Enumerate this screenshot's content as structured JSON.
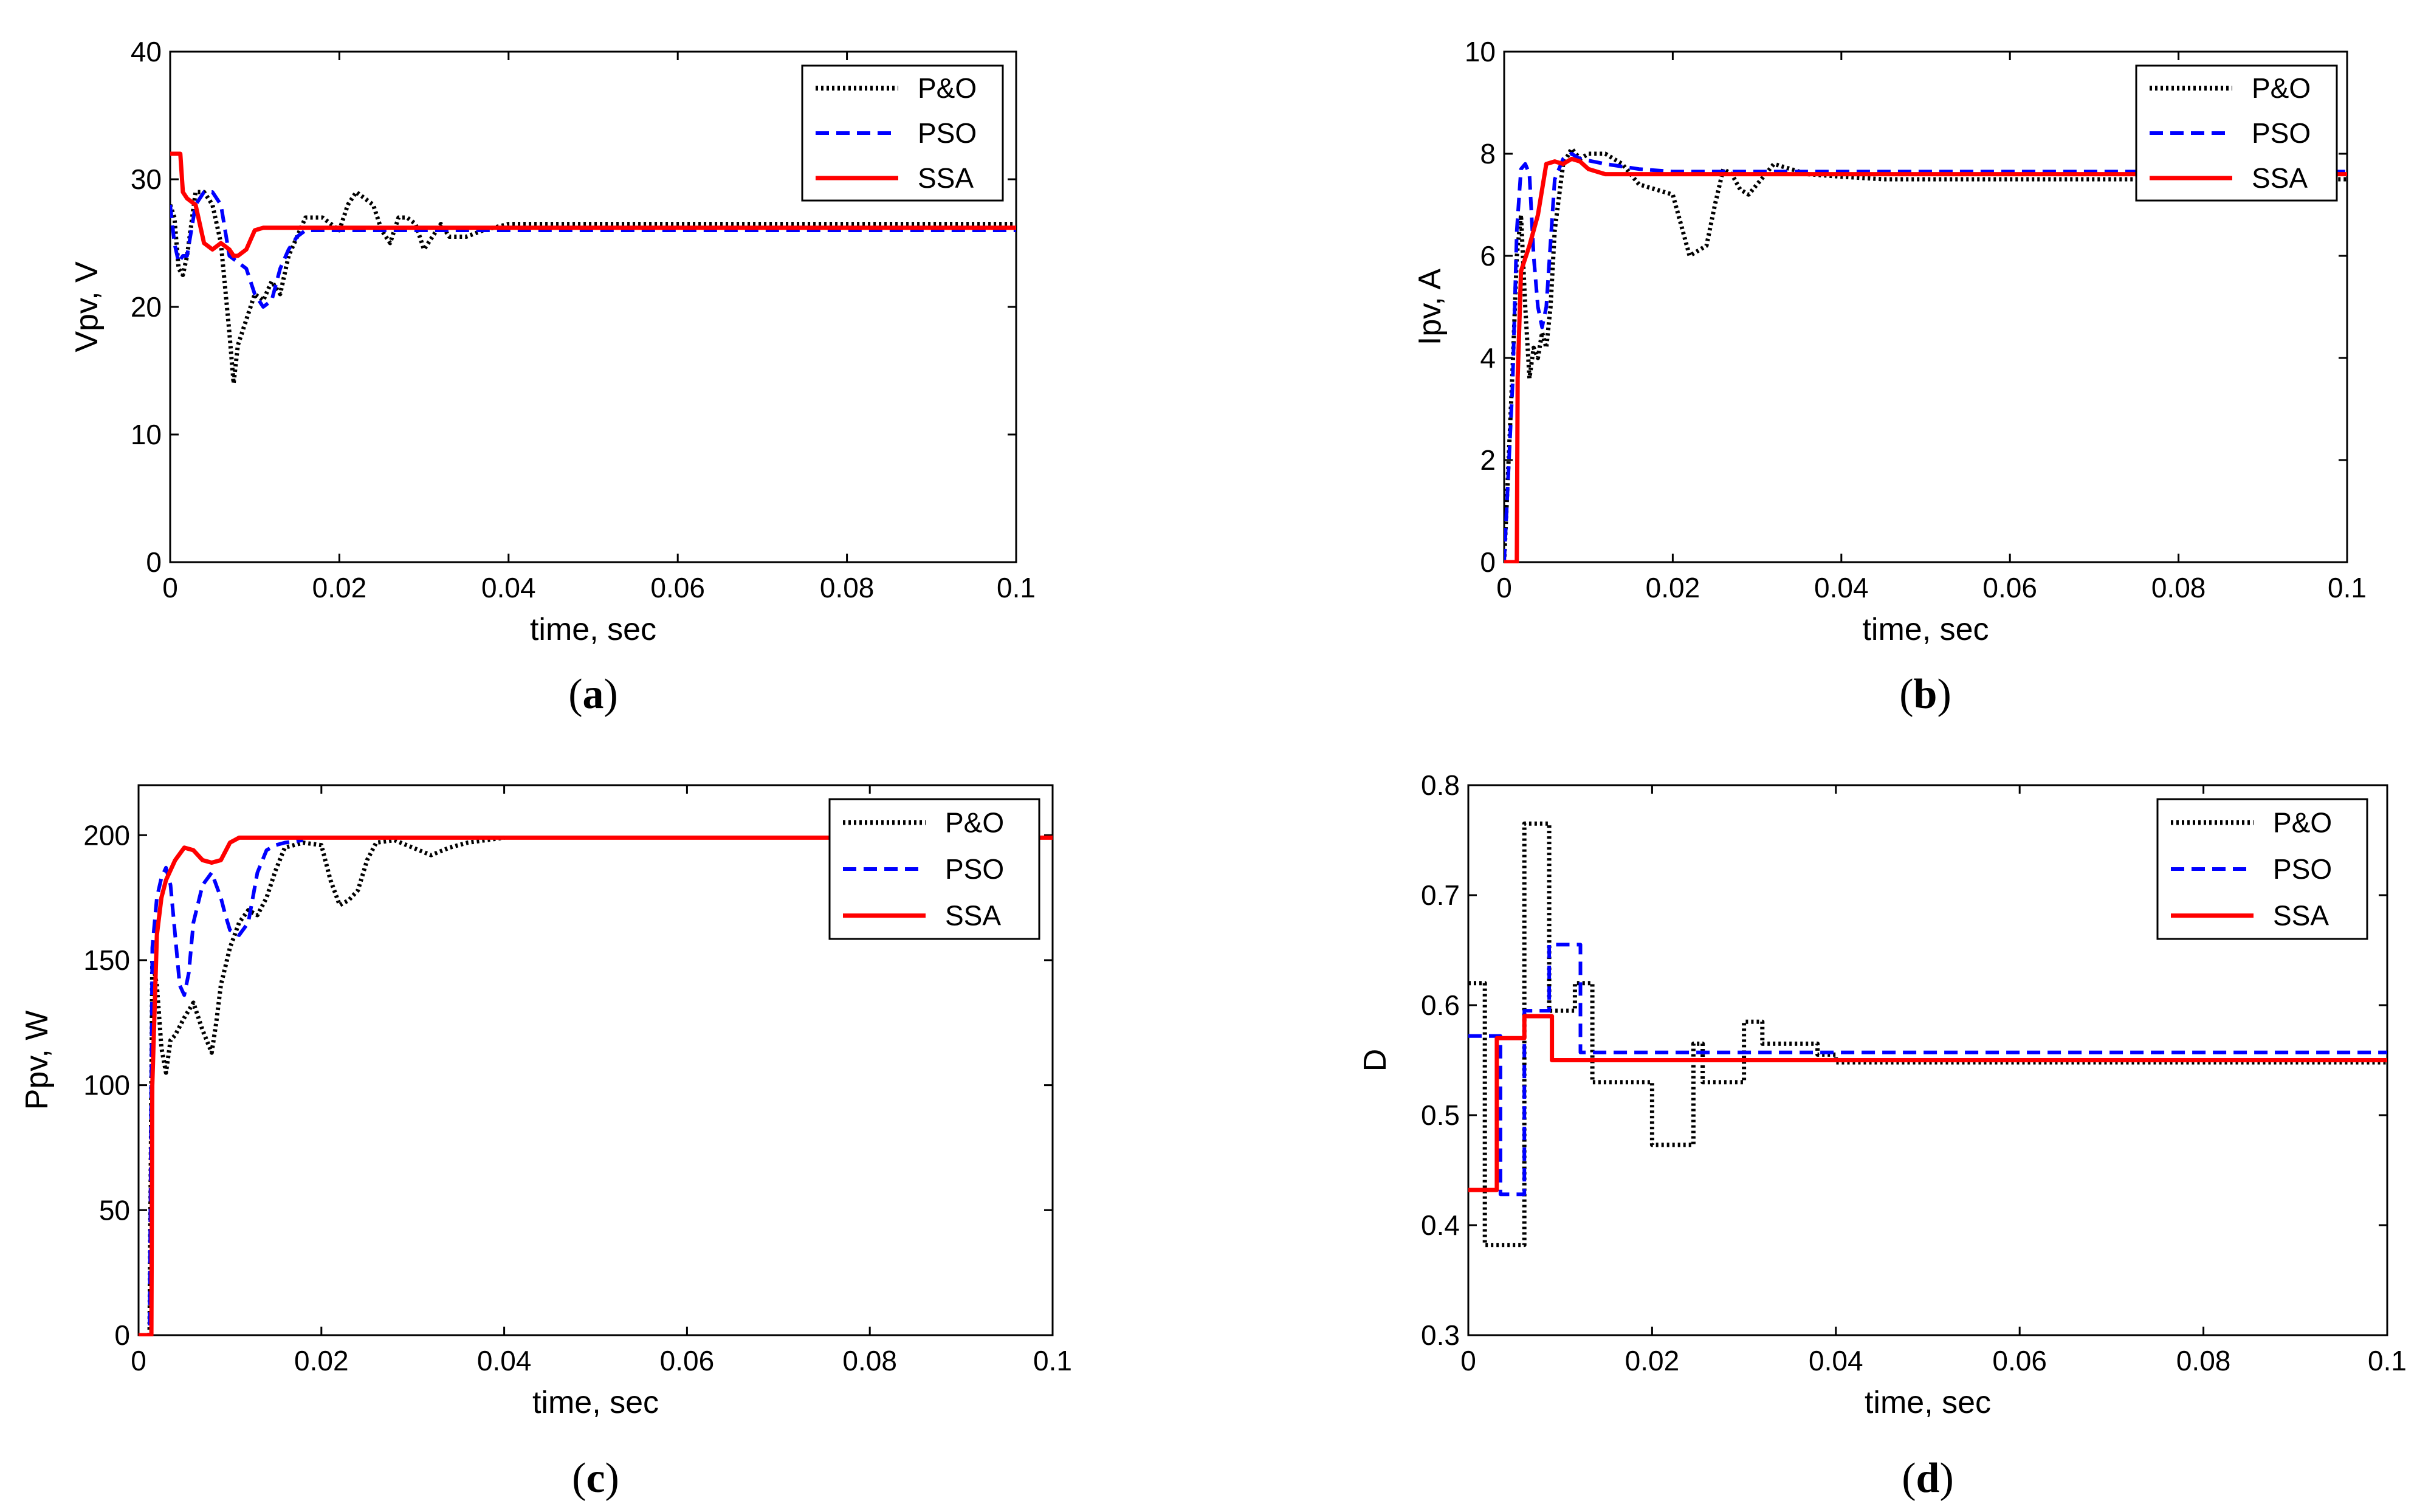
{
  "chart_data": [
    {
      "type": "line",
      "id": "a",
      "caption_letter": "a",
      "xlabel": "time, sec",
      "ylabel": "Vpv, V",
      "xlim": [
        0,
        0.1
      ],
      "ylim": [
        0,
        40
      ],
      "xticks": [
        0,
        0.02,
        0.04,
        0.06,
        0.08,
        0.1
      ],
      "xtick_labels": [
        "0",
        "0.02",
        "0.04",
        "0.06",
        "0.08",
        "0.1"
      ],
      "yticks": [
        0,
        10,
        20,
        30,
        40
      ],
      "ytick_labels": [
        "0",
        "10",
        "20",
        "30",
        "40"
      ],
      "legend_position": "top-right",
      "series": [
        {
          "name": "P&O",
          "color": "#000000",
          "style": "dotted",
          "x": [
            0,
            0.0005,
            0.001,
            0.0015,
            0.002,
            0.003,
            0.004,
            0.005,
            0.006,
            0.007,
            0.0075,
            0.008,
            0.009,
            0.01,
            0.011,
            0.012,
            0.013,
            0.014,
            0.016,
            0.018,
            0.02,
            0.021,
            0.022,
            0.023,
            0.024,
            0.025,
            0.026,
            0.027,
            0.028,
            0.029,
            0.03,
            0.031,
            0.032,
            0.033,
            0.035,
            0.037,
            0.04,
            0.045,
            0.05,
            0.06,
            0.07,
            0.08,
            0.09,
            0.1
          ],
          "y": [
            28,
            27,
            23,
            22.5,
            24,
            29,
            29,
            28,
            25,
            18,
            14,
            17,
            19,
            21,
            20.5,
            22,
            21,
            24,
            27,
            27,
            26,
            28,
            29,
            28.5,
            28,
            26,
            25,
            27,
            27,
            26.5,
            24.5,
            25.5,
            26.5,
            25.5,
            25.5,
            26,
            26.5,
            26.5,
            26.5,
            26.5,
            26.5,
            26.5,
            26.5,
            26.5
          ]
        },
        {
          "name": "PSO",
          "color": "#0000ff",
          "style": "dashed",
          "x": [
            0,
            0.0005,
            0.001,
            0.0015,
            0.002,
            0.003,
            0.004,
            0.005,
            0.006,
            0.007,
            0.008,
            0.009,
            0.01,
            0.011,
            0.012,
            0.013,
            0.014,
            0.015,
            0.016,
            0.018,
            0.02,
            0.03,
            0.04,
            0.05,
            0.06,
            0.07,
            0.08,
            0.09,
            0.1
          ],
          "y": [
            28,
            25,
            23.5,
            24,
            24,
            28,
            29,
            29,
            28,
            24,
            23.5,
            23,
            21,
            20,
            20.5,
            23,
            24.5,
            25.5,
            26,
            26,
            26,
            26,
            26,
            26,
            26,
            26,
            26,
            26,
            26
          ]
        },
        {
          "name": "SSA",
          "color": "#ff0000",
          "style": "solid",
          "x": [
            0,
            0.0012,
            0.0015,
            0.002,
            0.003,
            0.004,
            0.005,
            0.006,
            0.007,
            0.0075,
            0.008,
            0.009,
            0.01,
            0.011,
            0.012,
            0.014,
            0.016,
            0.02,
            0.03,
            0.04,
            0.05,
            0.06,
            0.07,
            0.08,
            0.09,
            0.1
          ],
          "y": [
            32,
            32,
            29,
            28.5,
            28,
            25,
            24.5,
            25,
            24.5,
            24,
            24,
            24.5,
            26,
            26.2,
            26.2,
            26.2,
            26.2,
            26.2,
            26.2,
            26.2,
            26.2,
            26.2,
            26.2,
            26.2,
            26.2,
            26.2
          ]
        }
      ]
    },
    {
      "type": "line",
      "id": "b",
      "caption_letter": "b",
      "xlabel": "time, sec",
      "ylabel": "Ipv, A",
      "xlim": [
        0,
        0.1
      ],
      "ylim": [
        0,
        10
      ],
      "xticks": [
        0,
        0.02,
        0.04,
        0.06,
        0.08,
        0.1
      ],
      "xtick_labels": [
        "0",
        "0.02",
        "0.04",
        "0.06",
        "0.08",
        "0.1"
      ],
      "yticks": [
        0,
        2,
        4,
        6,
        8,
        10
      ],
      "ytick_labels": [
        "0",
        "2",
        "4",
        "6",
        "8",
        "10"
      ],
      "legend_position": "top-right",
      "series": [
        {
          "name": "P&O",
          "color": "#000000",
          "style": "dotted",
          "x": [
            0,
            0.001,
            0.0015,
            0.002,
            0.0025,
            0.003,
            0.0035,
            0.004,
            0.0045,
            0.005,
            0.0055,
            0.006,
            0.007,
            0.008,
            0.009,
            0.01,
            0.012,
            0.014,
            0.016,
            0.018,
            0.02,
            0.021,
            0.022,
            0.023,
            0.024,
            0.025,
            0.026,
            0.027,
            0.028,
            0.029,
            0.03,
            0.031,
            0.032,
            0.034,
            0.036,
            0.04,
            0.045,
            0.05,
            0.06,
            0.07,
            0.08,
            0.09,
            0.1
          ],
          "y": [
            0,
            3.8,
            6,
            6.8,
            5,
            3.6,
            4.2,
            4,
            4.5,
            4.2,
            5,
            6.5,
            7.8,
            8.1,
            7.9,
            8,
            8,
            7.8,
            7.4,
            7.3,
            7.2,
            6.6,
            6.0,
            6.1,
            6.2,
            7,
            7.7,
            7.6,
            7.3,
            7.2,
            7.4,
            7.6,
            7.8,
            7.7,
            7.6,
            7.55,
            7.5,
            7.5,
            7.5,
            7.5,
            7.5,
            7.5,
            7.5
          ]
        },
        {
          "name": "PSO",
          "color": "#0000ff",
          "style": "dashed",
          "x": [
            0,
            0.001,
            0.0015,
            0.002,
            0.0025,
            0.003,
            0.0035,
            0.004,
            0.0045,
            0.005,
            0.006,
            0.007,
            0.008,
            0.009,
            0.012,
            0.016,
            0.02,
            0.03,
            0.04,
            0.05,
            0.06,
            0.07,
            0.08,
            0.09,
            0.1
          ],
          "y": [
            0,
            3.5,
            6.5,
            7.7,
            7.8,
            7.6,
            6.0,
            5.0,
            4.6,
            5,
            7.5,
            7.9,
            8,
            7.9,
            7.8,
            7.7,
            7.65,
            7.65,
            7.65,
            7.65,
            7.65,
            7.65,
            7.65,
            7.65,
            7.65
          ]
        },
        {
          "name": "SSA",
          "color": "#ff0000",
          "style": "solid",
          "x": [
            0,
            0.0015,
            0.0016,
            0.002,
            0.003,
            0.004,
            0.005,
            0.006,
            0.007,
            0.008,
            0.009,
            0.01,
            0.012,
            0.014,
            0.016,
            0.02,
            0.03,
            0.04,
            0.05,
            0.06,
            0.07,
            0.08,
            0.09,
            0.1
          ],
          "y": [
            0,
            0,
            3.6,
            5.7,
            6.2,
            6.8,
            7.8,
            7.85,
            7.8,
            7.9,
            7.85,
            7.7,
            7.6,
            7.6,
            7.6,
            7.6,
            7.6,
            7.6,
            7.6,
            7.6,
            7.6,
            7.6,
            7.6,
            7.6
          ]
        }
      ]
    },
    {
      "type": "line",
      "id": "c",
      "caption_letter": "c",
      "xlabel": "time, sec",
      "ylabel": "Ppv, W",
      "xlim": [
        0,
        0.1
      ],
      "ylim": [
        0,
        220
      ],
      "xticks": [
        0,
        0.02,
        0.04,
        0.06,
        0.08,
        0.1
      ],
      "xtick_labels": [
        "0",
        "0.02",
        "0.04",
        "0.06",
        "0.08",
        "0.1"
      ],
      "yticks": [
        0,
        50,
        100,
        150,
        200
      ],
      "ytick_labels": [
        "0",
        "50",
        "100",
        "150",
        "200"
      ],
      "legend_position": "top-right",
      "series": [
        {
          "name": "P&O",
          "color": "#000000",
          "style": "dotted",
          "x": [
            0,
            0.0012,
            0.0015,
            0.002,
            0.0025,
            0.003,
            0.0035,
            0.004,
            0.005,
            0.006,
            0.007,
            0.008,
            0.0085,
            0.009,
            0.01,
            0.011,
            0.012,
            0.013,
            0.014,
            0.015,
            0.016,
            0.018,
            0.02,
            0.021,
            0.022,
            0.023,
            0.024,
            0.025,
            0.026,
            0.028,
            0.03,
            0.032,
            0.034,
            0.036,
            0.038,
            0.04
          ],
          "y": [
            0,
            0,
            150,
            140,
            115,
            105,
            118,
            120,
            127,
            133,
            122,
            113,
            125,
            140,
            155,
            165,
            170,
            168,
            175,
            186,
            195,
            197,
            196,
            182,
            172,
            174,
            178,
            190,
            197,
            198,
            195,
            192,
            195,
            197,
            198,
            199
          ]
        },
        {
          "name": "PSO",
          "color": "#0000ff",
          "style": "dashed",
          "x": [
            0,
            0.0012,
            0.0015,
            0.002,
            0.0025,
            0.003,
            0.0035,
            0.004,
            0.0045,
            0.005,
            0.0055,
            0.006,
            0.007,
            0.008,
            0.009,
            0.0095,
            0.01,
            0.011,
            0.012,
            0.013,
            0.014,
            0.015,
            0.016,
            0.018
          ],
          "y": [
            0,
            0,
            155,
            175,
            183,
            187,
            180,
            160,
            140,
            136,
            145,
            165,
            180,
            185,
            175,
            168,
            162,
            160,
            165,
            185,
            194,
            196,
            197,
            198
          ]
        },
        {
          "name": "SSA",
          "color": "#ff0000",
          "style": "solid",
          "x": [
            0,
            0.0014,
            0.0015,
            0.002,
            0.0025,
            0.003,
            0.0035,
            0.004,
            0.005,
            0.006,
            0.007,
            0.008,
            0.009,
            0.01,
            0.011,
            0.012,
            0.014,
            0.016,
            0.02,
            0.03,
            0.04,
            0.05,
            0.06,
            0.07,
            0.08,
            0.09,
            0.1
          ],
          "y": [
            0,
            0,
            100,
            160,
            175,
            182,
            186,
            190,
            195,
            194,
            190,
            189,
            190,
            197,
            199,
            199,
            199,
            199,
            199,
            199,
            199,
            199,
            199,
            199,
            199,
            199,
            199
          ]
        }
      ]
    },
    {
      "type": "line",
      "id": "d",
      "caption_letter": "d",
      "xlabel": "time, sec",
      "ylabel": "D",
      "xlim": [
        0,
        0.1
      ],
      "ylim": [
        0.3,
        0.8
      ],
      "xticks": [
        0,
        0.02,
        0.04,
        0.06,
        0.08,
        0.1
      ],
      "xtick_labels": [
        "0",
        "0.02",
        "0.04",
        "0.06",
        "0.08",
        "0.1"
      ],
      "yticks": [
        0.3,
        0.4,
        0.5,
        0.6,
        0.7,
        0.8
      ],
      "ytick_labels": [
        "0.3",
        "0.4",
        "0.5",
        "0.6",
        "0.7",
        "0.8"
      ],
      "legend_position": "top-right",
      "series": [
        {
          "name": "P&O",
          "color": "#000000",
          "style": "dotted",
          "x": [
            0,
            0.0018,
            0.0018,
            0.0061,
            0.0061,
            0.0088,
            0.0088,
            0.0116,
            0.0116,
            0.0135,
            0.0135,
            0.02,
            0.02,
            0.0245,
            0.0245,
            0.0255,
            0.0255,
            0.03,
            0.03,
            0.032,
            0.032,
            0.038,
            0.038,
            0.04,
            0.04,
            0.1
          ],
          "y": [
            0.62,
            0.62,
            0.382,
            0.382,
            0.765,
            0.765,
            0.595,
            0.595,
            0.62,
            0.62,
            0.53,
            0.53,
            0.473,
            0.473,
            0.565,
            0.565,
            0.53,
            0.53,
            0.585,
            0.585,
            0.565,
            0.565,
            0.555,
            0.555,
            0.548,
            0.548
          ]
        },
        {
          "name": "PSO",
          "color": "#0000ff",
          "style": "dashed",
          "x": [
            0,
            0.0035,
            0.0035,
            0.0061,
            0.0061,
            0.0088,
            0.0088,
            0.0122,
            0.0122,
            0.1
          ],
          "y": [
            0.572,
            0.572,
            0.428,
            0.428,
            0.595,
            0.595,
            0.655,
            0.655,
            0.557,
            0.557
          ]
        },
        {
          "name": "SSA",
          "color": "#ff0000",
          "style": "solid",
          "x": [
            0,
            0.0031,
            0.0031,
            0.0061,
            0.0061,
            0.0091,
            0.0091,
            0.1
          ],
          "y": [
            0.432,
            0.432,
            0.57,
            0.57,
            0.59,
            0.59,
            0.55,
            0.55
          ]
        }
      ]
    }
  ]
}
